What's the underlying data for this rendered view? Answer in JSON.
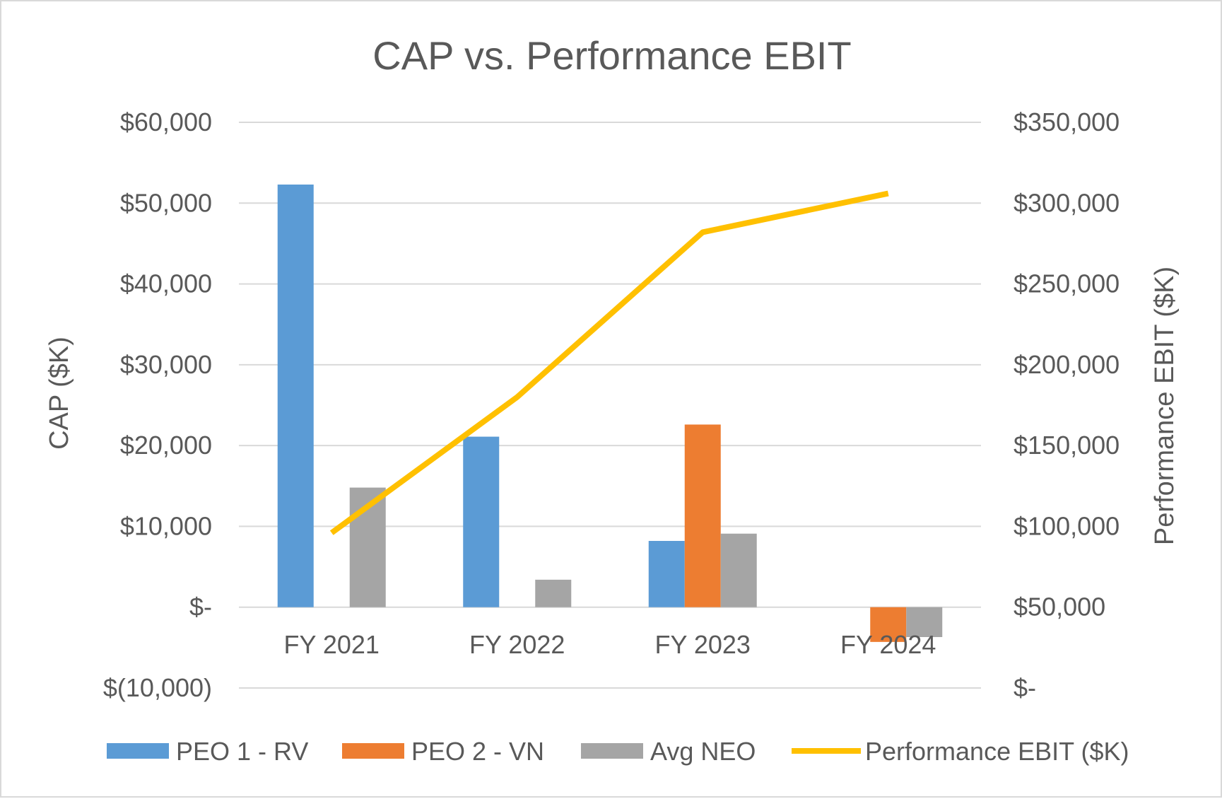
{
  "chart_data": {
    "type": "bar",
    "title": "CAP vs. Performance EBIT",
    "categories": [
      "FY 2021",
      "FY 2022",
      "FY 2023",
      "FY 2024"
    ],
    "series": [
      {
        "name": "PEO 1 - RV",
        "axis": "left",
        "kind": "bar",
        "color": "#5b9bd5",
        "values": [
          52300,
          21100,
          8200,
          null
        ]
      },
      {
        "name": "PEO 2 - VN",
        "axis": "left",
        "kind": "bar",
        "color": "#ed7d31",
        "values": [
          null,
          null,
          22600,
          -4300
        ]
      },
      {
        "name": "Avg NEO",
        "axis": "left",
        "kind": "bar",
        "color": "#a5a5a5",
        "values": [
          14800,
          3400,
          9100,
          -3700
        ]
      },
      {
        "name": "Performance EBIT ($K)",
        "axis": "right",
        "kind": "line",
        "color": "#ffc000",
        "values": [
          96000,
          180000,
          282000,
          306000
        ]
      }
    ],
    "ylabel": "CAP ($K)",
    "y2label": "Performance EBIT ($K)",
    "ylim": [
      -10000,
      60000
    ],
    "y2lim": [
      0,
      350000
    ],
    "yticks": [
      {
        "value": 60000,
        "label": "$60,000"
      },
      {
        "value": 50000,
        "label": "$50,000"
      },
      {
        "value": 40000,
        "label": "$40,000"
      },
      {
        "value": 30000,
        "label": "$30,000"
      },
      {
        "value": 20000,
        "label": "$20,000"
      },
      {
        "value": 10000,
        "label": "$10,000"
      },
      {
        "value": 0,
        "label": "$-"
      },
      {
        "value": -10000,
        "label": "$(10,000)"
      }
    ],
    "y2ticks": [
      {
        "value": 350000,
        "label": "$350,000"
      },
      {
        "value": 300000,
        "label": "$300,000"
      },
      {
        "value": 250000,
        "label": "$250,000"
      },
      {
        "value": 200000,
        "label": "$200,000"
      },
      {
        "value": 150000,
        "label": "$150,000"
      },
      {
        "value": 100000,
        "label": "$100,000"
      },
      {
        "value": 50000,
        "label": "$50,000"
      },
      {
        "value": 0,
        "label": "$-"
      }
    ],
    "grid": true,
    "legend_position": "bottom"
  }
}
